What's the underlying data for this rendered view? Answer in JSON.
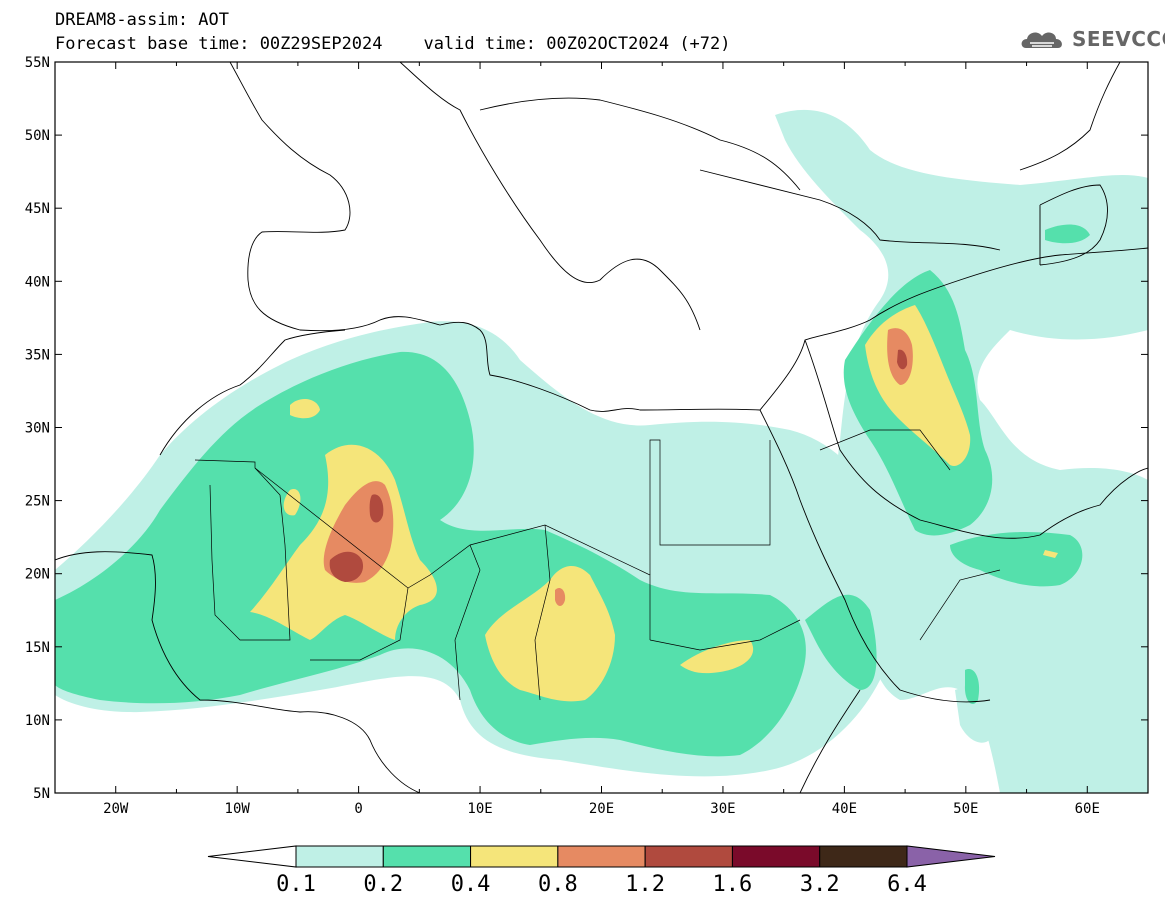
{
  "header": {
    "line1": "DREAM8-assim: AOT",
    "line2": "Forecast base time: 00Z29SEP2024    valid time: 00Z02OCT2024 (+72)"
  },
  "logo": {
    "text": "SEEVCCC",
    "icon": "cloud-logo-icon"
  },
  "map": {
    "lon_range": [
      -25,
      65
    ],
    "lat_range": [
      5,
      55
    ],
    "lat_labels": [
      "55N",
      "50N",
      "45N",
      "40N",
      "35N",
      "30N",
      "25N",
      "20N",
      "15N",
      "10N",
      "5N"
    ],
    "lon_labels": [
      "20W",
      "10W",
      "0",
      "10E",
      "20E",
      "30E",
      "40E",
      "50E",
      "60E"
    ]
  },
  "colorbar": {
    "labels": [
      "0.1",
      "0.2",
      "0.4",
      "0.8",
      "1.2",
      "1.6",
      "3.2",
      "6.4"
    ],
    "colors": [
      "#ffffff",
      "#bff0e6",
      "#55e0ac",
      "#f5e57a",
      "#e68a62",
      "#b04a3e",
      "#7a0a2a",
      "#3e2818",
      "#8a62a8"
    ]
  }
}
